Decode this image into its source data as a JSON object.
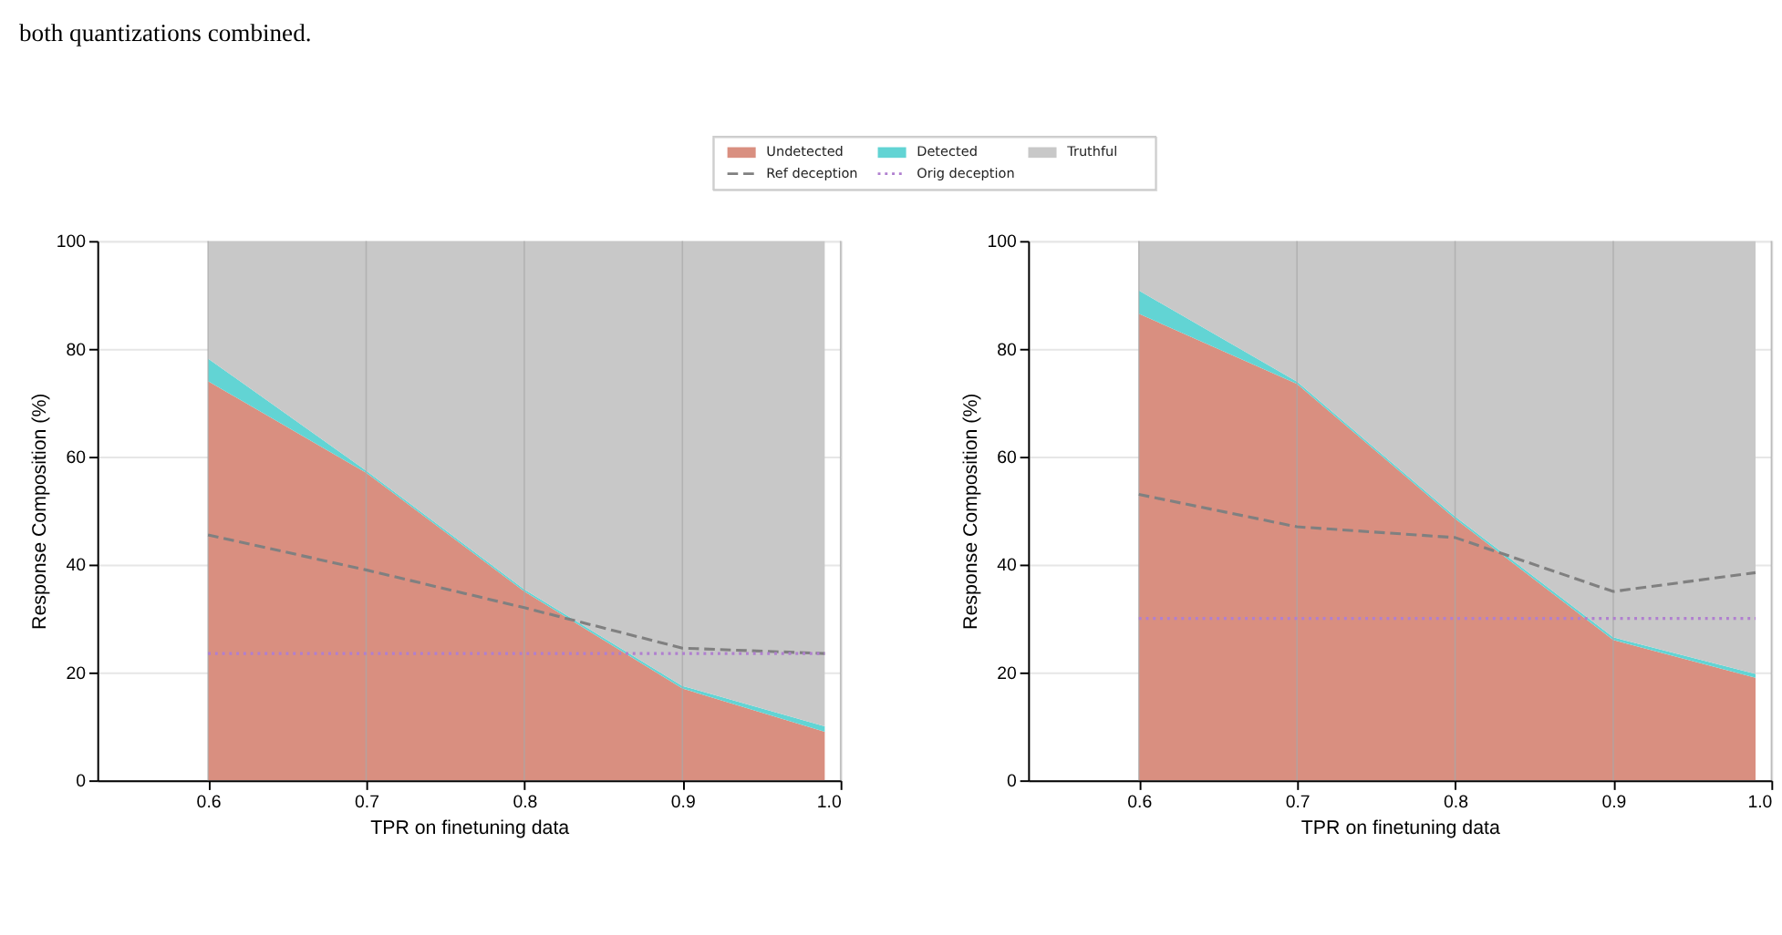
{
  "chart_data": [
    {
      "type": "area",
      "stacked": true,
      "x": [
        0.6,
        0.7,
        0.8,
        0.9,
        0.99
      ],
      "xlabel": "TPR on finetuning data",
      "ylabel": "Response Composition (%)",
      "xlim": [
        0.53,
        1.0
      ],
      "xticks": [
        0.6,
        0.7,
        0.8,
        0.9,
        {
          "value": 1.0,
          "label": "1.0"
        }
      ],
      "ylim": [
        0,
        100
      ],
      "yticks": [
        0,
        20,
        40,
        60,
        80,
        100
      ],
      "grid": true,
      "legend": "top",
      "annotations": [
        "both quantizations combined."
      ],
      "series": [
        {
          "name": "Undetected",
          "color": "#d98f80",
          "values": [
            74,
            57,
            35,
            17,
            9
          ]
        },
        {
          "name": "Detected",
          "color": "#62d4d4",
          "values": [
            4.2,
            0.4,
            0.4,
            0.5,
            1
          ]
        },
        {
          "name": "Truthful",
          "color": "#c8c8c8",
          "values": [
            21.8,
            42.6,
            64.6,
            82.5,
            90
          ]
        },
        {
          "name": "Ref deception",
          "type": "line",
          "line_style": "dashed",
          "color": "#808080",
          "values": [
            45.5,
            39,
            32,
            24.5,
            23.5
          ]
        },
        {
          "name": "Orig deception",
          "type": "line",
          "line_style": "dotted",
          "color": "#b07fd0",
          "values": [
            23.5,
            23.5,
            23.5,
            23.5,
            23.5
          ]
        }
      ]
    },
    {
      "type": "area",
      "stacked": true,
      "x": [
        0.6,
        0.7,
        0.8,
        0.9,
        0.99
      ],
      "xlabel": "TPR on finetuning data",
      "ylabel": "Response Composition (%)",
      "xlim": [
        0.53,
        1.0
      ],
      "xticks": [
        0.6,
        0.7,
        0.8,
        0.9,
        {
          "value": 1.0,
          "label": "1.0"
        }
      ],
      "ylim": [
        0,
        100
      ],
      "yticks": [
        0,
        20,
        40,
        60,
        80,
        100
      ],
      "grid": true,
      "series": [
        {
          "color": "#d98f80",
          "values": [
            86.5,
            73.5,
            48.5,
            26,
            19
          ]
        },
        {
          "color": "#62d4d4",
          "values": [
            4.3,
            0.4,
            0.4,
            0.5,
            0.7
          ]
        },
        {
          "color": "#c8c8c8",
          "values": [
            9.2,
            26.1,
            51.1,
            73.5,
            80.3
          ]
        },
        {
          "type": "line",
          "line_style": "dashed",
          "color": "#808080",
          "values": [
            53,
            47,
            45,
            35,
            38.5
          ]
        },
        {
          "type": "line",
          "line_style": "dotted",
          "color": "#b07fd0",
          "values": [
            30,
            30,
            30,
            30,
            30
          ]
        }
      ]
    }
  ]
}
